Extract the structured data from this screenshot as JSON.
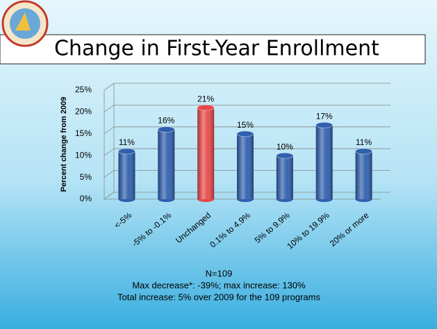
{
  "chart_data": {
    "type": "bar",
    "title": "Change in First-Year Enrollment",
    "y_label": "Percent change from 2009",
    "categories": [
      "<-5%",
      "-5% to -0.1%",
      "Unchanged",
      "0.1% to 4.9%",
      "5% to  9.9%",
      "10% to 19.9%",
      "20% or more"
    ],
    "values": [
      11,
      16,
      21,
      15,
      10,
      17,
      11
    ],
    "value_labels": [
      "11%",
      "16%",
      "21%",
      "15%",
      "10%",
      "17%",
      "11%"
    ],
    "colors": [
      "#2f5fae",
      "#2f5fae",
      "#e84848",
      "#2f5fae",
      "#2f5fae",
      "#2f5fae",
      "#2f5fae"
    ],
    "ylim": [
      0,
      25
    ],
    "yticks": [
      {
        "value": 0,
        "label": "0%"
      },
      {
        "value": 5,
        "label": "5%"
      },
      {
        "value": 10,
        "label": "10%"
      },
      {
        "value": 15,
        "label": "15%"
      },
      {
        "value": 20,
        "label": "20%"
      },
      {
        "value": 25,
        "label": "25%"
      }
    ],
    "grid": true,
    "notes": [
      "N=109",
      "Max decrease*: -39%; max increase: 130%",
      "Total increase: 5% over 2009 for the 109 programs"
    ]
  }
}
